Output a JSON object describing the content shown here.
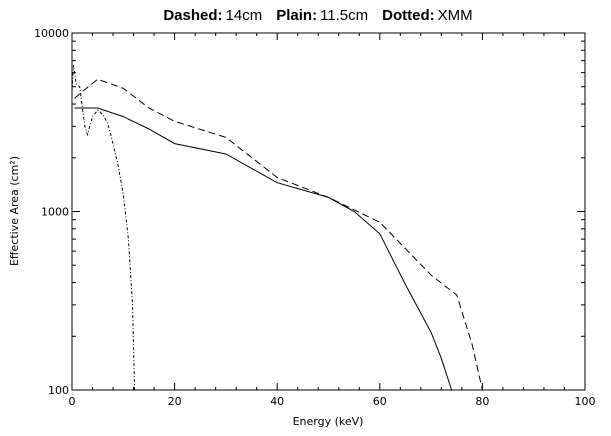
{
  "chart_data": {
    "type": "line",
    "title": {
      "dashed_key": "Dashed:",
      "dashed_val": "14cm",
      "plain_key": "Plain:",
      "plain_val": "11.5cm",
      "dotted_key": "Dotted:",
      "dotted_val": "XMM"
    },
    "xlabel": "Energy (keV)",
    "ylabel": "Effective Area (cm²)",
    "xlim": [
      0,
      100
    ],
    "ylim": [
      100,
      10000
    ],
    "yscale": "log",
    "x_ticks": [
      0,
      20,
      40,
      60,
      80,
      100
    ],
    "y_ticks": [
      100,
      1000,
      10000
    ],
    "grid": false,
    "series": [
      {
        "style": "dashed",
        "x": [
          0.5,
          2,
          5,
          10,
          15,
          20,
          30,
          40,
          50,
          60,
          65,
          70,
          75,
          78,
          80
        ],
        "y": [
          4300,
          4700,
          5500,
          4900,
          3800,
          3200,
          2600,
          1550,
          1200,
          870,
          620,
          440,
          340,
          180,
          100
        ]
      },
      {
        "style": "solid",
        "x": [
          0.5,
          2,
          5,
          10,
          15,
          20,
          30,
          40,
          50,
          55,
          60,
          65,
          70,
          72,
          74
        ],
        "y": [
          3800,
          3800,
          3800,
          3400,
          2900,
          2400,
          2100,
          1450,
          1200,
          1000,
          750,
          390,
          210,
          150,
          100
        ]
      },
      {
        "style": "dotted",
        "x": [
          0,
          0.3,
          0.8,
          1.5,
          2.5,
          3,
          4,
          5,
          6,
          7,
          8,
          9,
          10,
          11,
          11.8,
          12.2
        ],
        "y": [
          4700,
          6600,
          5200,
          5000,
          3000,
          2700,
          3400,
          3700,
          3500,
          3100,
          2400,
          1800,
          1250,
          700,
          300,
          100
        ]
      }
    ]
  }
}
